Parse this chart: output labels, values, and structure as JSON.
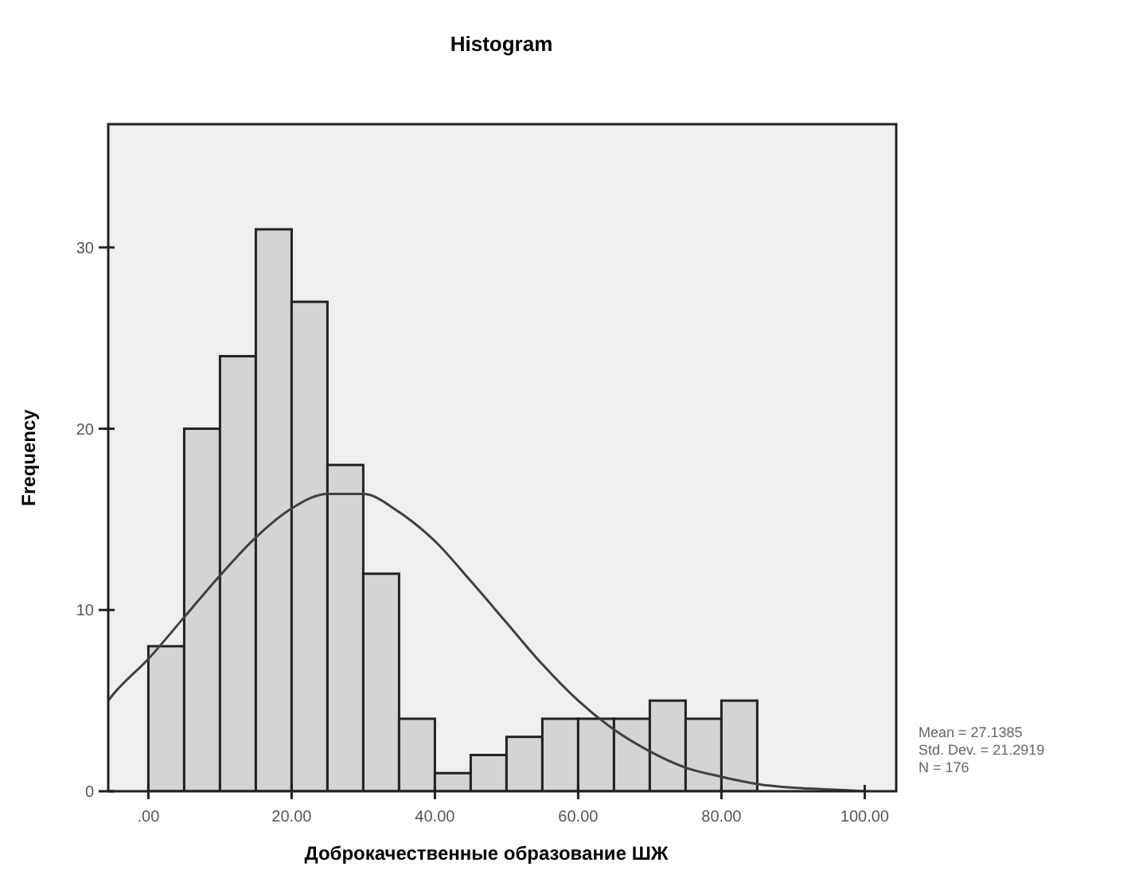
{
  "chart_data": {
    "type": "histogram",
    "title": "Histogram",
    "xlabel": "Доброкачественные образование ШЖ",
    "ylabel": "Frequency",
    "bins": [
      0,
      5,
      10,
      15,
      20,
      25,
      30,
      35,
      40,
      45,
      50,
      55,
      60,
      65,
      70,
      75,
      80,
      85
    ],
    "values": [
      8,
      20,
      24,
      31,
      27,
      18,
      12,
      4,
      1,
      2,
      3,
      4,
      4,
      4,
      5,
      4,
      5
    ],
    "color": "#d4d4d4",
    "series": [
      {
        "type": "line",
        "color": "#404040",
        "x": [
          -5.6,
          -5,
          0,
          5,
          10,
          15,
          20,
          25,
          30,
          35,
          40,
          45,
          50,
          55,
          60,
          65,
          70,
          75,
          80,
          85,
          90,
          95,
          100
        ],
        "values": [
          5.0,
          5.3,
          7.3,
          9.6,
          11.9,
          14.0,
          15.6,
          16.4,
          16.4,
          15.4,
          13.8,
          11.6,
          9.3,
          7.0,
          5.0,
          3.4,
          2.2,
          1.3,
          0.8,
          0.4,
          0.2,
          0.1,
          0
        ]
      }
    ],
    "xlim": [
      -5.6,
      104.4
    ],
    "ylim": [
      0,
      36.8
    ],
    "xticks": [
      {
        "value": 0,
        "label": ".00"
      },
      {
        "value": 20,
        "label": "20.00"
      },
      {
        "value": 40,
        "label": "40.00"
      },
      {
        "value": 60,
        "label": "60.00"
      },
      {
        "value": 80,
        "label": "80.00"
      },
      {
        "value": 100,
        "label": "100.00"
      }
    ],
    "yticks": [
      0,
      10,
      20,
      30
    ],
    "annotations": [
      "Mean = 27.1385",
      "Std. Dev. = 21.2919",
      "N = 176"
    ]
  }
}
